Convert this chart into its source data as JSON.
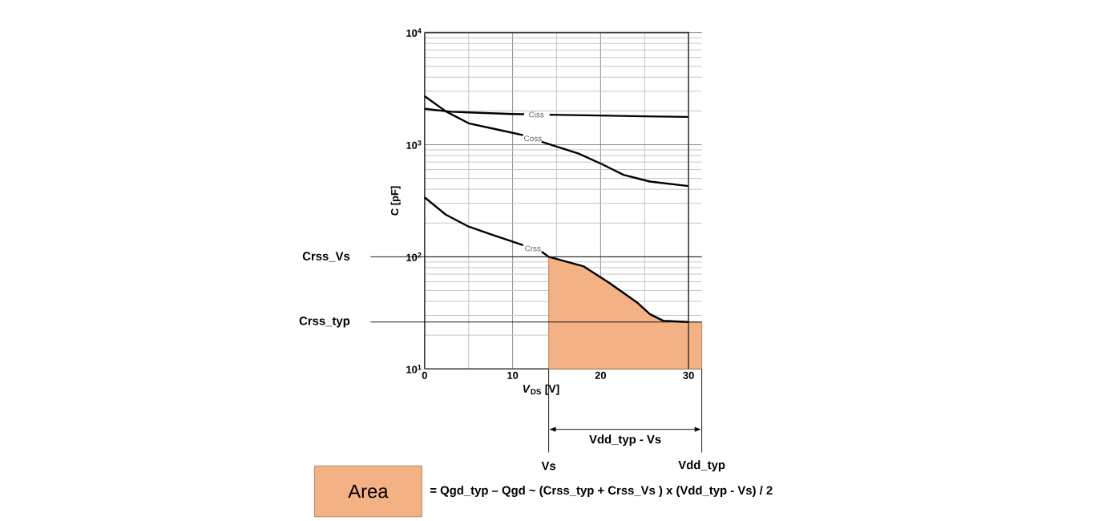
{
  "chart_data": {
    "type": "line",
    "xlabel": "*V*$_{DS}$ [V]",
    "ylabel": "C [pF]",
    "log": "y",
    "grid": true,
    "legend": "bottom",
    "xlim": [
      0,
      31.5
    ],
    "ylim": [
      10,
      10000
    ],
    "xticks": [
      0,
      10,
      20,
      30
    ],
    "yticks": [
      {
        "value": 10,
        "label": "10$^{1}$"
      },
      {
        "value": 100,
        "label": "10$^{2}$"
      },
      {
        "value": 1000,
        "label": "10$^{3}$"
      },
      {
        "value": 10000,
        "label": "10$^{4}$"
      }
    ],
    "series": [
      {
        "name": "Area",
        "type": "area",
        "color": "#f4b183",
        "x": [
          14.1,
          18.1,
          21.1,
          24.1,
          25.6,
          27.1,
          30,
          31.5
        ],
        "values": [
          100,
          82,
          57.7,
          39.4,
          30.8,
          26.9,
          26.2,
          26.2
        ]
      },
      {
        "name": "Ciss",
        "color": "#000000",
        "x": [
          0,
          3,
          5,
          10,
          11.3,
          12.7,
          14.2,
          20,
          25,
          30
        ],
        "values": [
          2090,
          1970,
          1940,
          1880,
          1870,
          null,
          1850,
          1820,
          1790,
          1770
        ]
      },
      {
        "name": "Coss",
        "color": "#000000",
        "x": [
          0,
          2.4,
          5,
          8,
          11.2,
          12.3,
          13.3,
          17.5,
          20.2,
          22.6,
          25.6,
          30
        ],
        "values": [
          2710,
          1985,
          1553,
          1380,
          1217,
          null,
          1063,
          832,
          668,
          538,
          469,
          428
        ]
      },
      {
        "name": "Crss",
        "color": "#000000",
        "x": [
          0,
          2.4,
          5,
          7.6,
          11.2,
          12.3,
          13.3,
          14.1,
          18.1,
          21.1,
          24.1,
          25.6,
          27.1,
          30
        ],
        "values": [
          339,
          238,
          186,
          158,
          127,
          null,
          111,
          100,
          82,
          57.7,
          39.4,
          30.8,
          26.9,
          26.2
        ]
      }
    ],
    "ref_lines": [
      {
        "axis": "y",
        "value": 100,
        "label": "Crss_Vs"
      },
      {
        "axis": "y",
        "value": 26.2,
        "label": "Crss_typ"
      },
      {
        "axis": "x",
        "value": 14.1,
        "label": "Vs"
      },
      {
        "axis": "x",
        "value": 31.5,
        "label": "Vdd_typ"
      }
    ],
    "annotations": [
      "Vdd_typ - Vs",
      "= Qgd_typ – Qgd  ~ (Crss_typ + Crss_Vs ) x (Vdd_typ - Vs) / 2"
    ]
  }
}
